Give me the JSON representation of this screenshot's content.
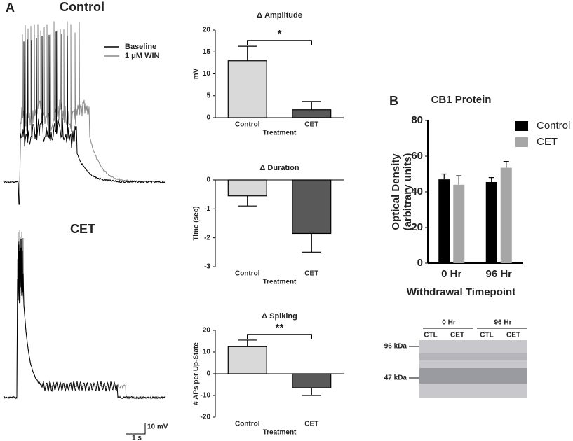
{
  "panels": {
    "a": "A",
    "b": "B"
  },
  "traces": {
    "control_label": "Control",
    "cet_label": "CET",
    "legend": [
      "Baseline",
      "1 μM WIN"
    ],
    "scale_y": "10 mV",
    "scale_x": "1 s"
  },
  "chart_data": [
    {
      "type": "bar",
      "title": "Δ Amplitude",
      "y_label": "mV",
      "x_label": "Treatment",
      "categories": [
        "Control",
        "CET"
      ],
      "values": [
        13,
        1.8
      ],
      "errors": [
        3.3,
        1.9
      ],
      "colors": [
        "#d9d9d9",
        "#595959"
      ],
      "ylim": [
        0,
        20
      ],
      "yticks": [
        0,
        5,
        10,
        15,
        20
      ],
      "annotation": "*"
    },
    {
      "type": "bar",
      "title": "Δ Duration",
      "y_label": "Time (sec)",
      "x_label": "Treatment",
      "categories": [
        "Control",
        "CET"
      ],
      "values": [
        -0.55,
        -1.85
      ],
      "errors": [
        0.35,
        0.65
      ],
      "colors": [
        "#d9d9d9",
        "#595959"
      ],
      "ylim": [
        -3,
        0
      ],
      "yticks": [
        0,
        -1,
        -2,
        -3
      ]
    },
    {
      "type": "bar",
      "title": "Δ Spiking",
      "y_label": "# APs per Up-State",
      "x_label": "Treatment",
      "categories": [
        "Control",
        "CET"
      ],
      "values": [
        12.5,
        -6.5
      ],
      "errors": [
        3,
        3.5
      ],
      "colors": [
        "#d9d9d9",
        "#595959"
      ],
      "ylim": [
        -20,
        20
      ],
      "yticks": [
        -20,
        -10,
        0,
        10,
        20
      ],
      "annotation": "**"
    },
    {
      "type": "bar",
      "title": "CB1 Protein",
      "y_label": [
        "Optical Density",
        "(arbitrary units)"
      ],
      "x_label": "Withdrawal Timepoint",
      "categories": [
        "0 Hr",
        "96 Hr"
      ],
      "series": [
        {
          "name": "Control",
          "color": "#000000",
          "values": [
            47,
            45.5
          ],
          "errors": [
            3,
            2.5
          ]
        },
        {
          "name": "CET",
          "color": "#a6a6a6",
          "values": [
            44,
            53.5
          ],
          "errors": [
            5,
            3.5
          ]
        }
      ],
      "ylim": [
        0,
        80
      ],
      "yticks": [
        0,
        20,
        40,
        60,
        80
      ]
    }
  ],
  "blot": {
    "groups": [
      "0 Hr",
      "96 Hr"
    ],
    "lanes": [
      "CTL",
      "CET",
      "CTL",
      "CET"
    ],
    "markers": [
      "96 kDa",
      "47 kDa"
    ]
  }
}
